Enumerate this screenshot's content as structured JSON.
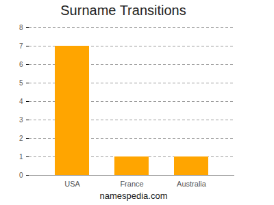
{
  "chart_data": {
    "type": "bar",
    "title": "Surname Transitions",
    "categories": [
      "USA",
      "France",
      "Australia"
    ],
    "values": [
      7,
      1,
      1
    ],
    "color": "#ffa500",
    "ylim": [
      0,
      8
    ],
    "yticks": [
      0,
      1,
      2,
      3,
      4,
      5,
      6,
      7,
      8
    ],
    "grid": true,
    "caption": "namespedia.com"
  }
}
